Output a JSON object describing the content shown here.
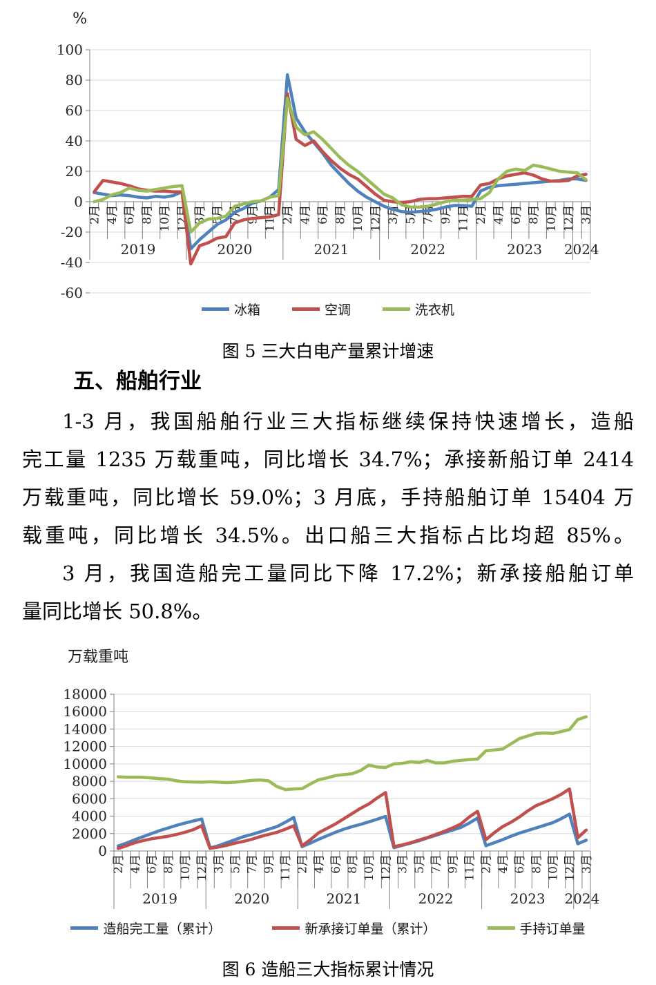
{
  "section": {
    "heading": "五、船舶行业",
    "para1": [
      "1-3 月，我国船舶行业三大指标继续保持快速增长，造船",
      "完工量 1235 万载重吨，同比增长 34.7%；承接新船订单 2414",
      "万载重吨，同比增长 59.0%；3 月底，手持船舶订单 15404 万",
      "载重吨，同比增长 34.5%。出口船三大指标占比均超 85%。"
    ],
    "para2": [
      "3 月，我国造船完工量同比下降 17.2%；新承接船舶订单",
      "量同比增长 50.8%。"
    ]
  },
  "chart_data": [
    {
      "type": "line",
      "title": "图 5 三大白电产量累计增速",
      "unit_label": "%",
      "ylim": [
        -60,
        100
      ],
      "y_ticks": [
        100,
        80,
        60,
        40,
        20,
        0,
        -20,
        -40,
        -60
      ],
      "grid": true,
      "legend_position": "bottom",
      "x_note": "cumulative year-to-date growth, points Feb-Dec of 2019-2023 plus Feb-Mar 2024 (57 points)",
      "x_tick_labels": [
        {
          "index": 0,
          "label": "2月"
        },
        {
          "index": 2,
          "label": "4月"
        },
        {
          "index": 4,
          "label": "6月"
        },
        {
          "index": 6,
          "label": "8月"
        },
        {
          "index": 8,
          "label": "10月"
        },
        {
          "index": 10,
          "label": "12月"
        },
        {
          "index": 12,
          "label": "3月"
        },
        {
          "index": 14,
          "label": "5月"
        },
        {
          "index": 16,
          "label": "7月"
        },
        {
          "index": 18,
          "label": "9月"
        },
        {
          "index": 20,
          "label": "11月"
        },
        {
          "index": 22,
          "label": "2月"
        },
        {
          "index": 24,
          "label": "4月"
        },
        {
          "index": 26,
          "label": "6月"
        },
        {
          "index": 28,
          "label": "8月"
        },
        {
          "index": 30,
          "label": "10月"
        },
        {
          "index": 32,
          "label": "12月"
        },
        {
          "index": 34,
          "label": "3月"
        },
        {
          "index": 36,
          "label": "5月"
        },
        {
          "index": 38,
          "label": "7月"
        },
        {
          "index": 40,
          "label": "9月"
        },
        {
          "index": 42,
          "label": "11月"
        },
        {
          "index": 44,
          "label": "2月"
        },
        {
          "index": 46,
          "label": "4月"
        },
        {
          "index": 48,
          "label": "6月"
        },
        {
          "index": 50,
          "label": "8月"
        },
        {
          "index": 52,
          "label": "10月"
        },
        {
          "index": 54,
          "label": "12月"
        },
        {
          "index": 56,
          "label": "3月"
        }
      ],
      "year_bands": [
        {
          "label": "2019",
          "start": 0,
          "end": 10
        },
        {
          "label": "2020",
          "start": 11,
          "end": 21
        },
        {
          "label": "2021",
          "start": 22,
          "end": 32
        },
        {
          "label": "2022",
          "start": 33,
          "end": 43
        },
        {
          "label": "2023",
          "start": 44,
          "end": 54
        },
        {
          "label": "2024",
          "start": 55,
          "end": 56
        }
      ],
      "series": [
        {
          "name": "冰箱",
          "color": "#4F81BD",
          "values": [
            6,
            5,
            4,
            4.5,
            4,
            3,
            2.5,
            3.5,
            3,
            4,
            6.5,
            -31,
            -25,
            -20,
            -15,
            -12,
            -7,
            -4.5,
            -1,
            0.5,
            3,
            8,
            83.5,
            55,
            46,
            39,
            32,
            24,
            18,
            12,
            7,
            3,
            0,
            -3,
            -5,
            -6.5,
            -7,
            -6.5,
            -6,
            -5,
            -3.5,
            -2.5,
            -2.5,
            -3,
            7,
            9.5,
            10.5,
            11,
            11.5,
            12,
            12.5,
            13,
            13.5,
            14,
            15,
            15,
            14
          ]
        },
        {
          "name": "空调",
          "color": "#C0504D",
          "values": [
            6.5,
            14,
            13,
            12,
            10.5,
            8.5,
            7.5,
            7,
            7,
            6.5,
            6.5,
            -41,
            -29,
            -27,
            -24,
            -23,
            -14,
            -12,
            -11,
            -10.5,
            -10,
            -8.5,
            71,
            41,
            37,
            40,
            33,
            27,
            22,
            18,
            15,
            10,
            5,
            1,
            0,
            -0.5,
            0,
            1.5,
            2,
            2,
            2.5,
            3,
            3.5,
            3.5,
            11,
            12,
            15,
            17,
            18,
            19,
            17.5,
            15,
            13.5,
            13.5,
            14,
            17,
            18
          ]
        },
        {
          "name": "洗衣机",
          "color": "#9BBB59",
          "values": [
            0,
            1.5,
            4.5,
            6,
            9,
            7.5,
            7,
            8,
            9,
            10,
            10.5,
            -20,
            -14,
            -11.5,
            -11,
            -9.5,
            -3,
            -1.5,
            0,
            0.5,
            3,
            4,
            68,
            49,
            44,
            46,
            41,
            35,
            29,
            24,
            20,
            15,
            10,
            5,
            2.5,
            -2,
            -3.5,
            -3.5,
            -3,
            -1.5,
            0,
            1,
            1,
            1.5,
            2,
            6,
            15,
            20,
            21.5,
            20.5,
            24,
            23,
            21.5,
            20,
            19.5,
            19,
            14.5
          ]
        }
      ]
    },
    {
      "type": "line",
      "title": "图 6 造船三大指标累计情况",
      "unit_label": "万载重吨",
      "ylim": [
        0,
        18000
      ],
      "y_ticks": [
        18000,
        16000,
        14000,
        12000,
        10000,
        8000,
        6000,
        4000,
        2000,
        0
      ],
      "grid": true,
      "legend_position": "bottom",
      "x_note": "cumulative totals, points Feb-Dec of 2019-2023 plus Feb-Mar 2024 (57 points)",
      "x_tick_labels": [
        {
          "index": 0,
          "label": "2月"
        },
        {
          "index": 2,
          "label": "4月"
        },
        {
          "index": 4,
          "label": "6月"
        },
        {
          "index": 6,
          "label": "8月"
        },
        {
          "index": 8,
          "label": "10月"
        },
        {
          "index": 10,
          "label": "12月"
        },
        {
          "index": 12,
          "label": "3月"
        },
        {
          "index": 14,
          "label": "5月"
        },
        {
          "index": 16,
          "label": "7月"
        },
        {
          "index": 18,
          "label": "9月"
        },
        {
          "index": 20,
          "label": "11月"
        },
        {
          "index": 22,
          "label": "2月"
        },
        {
          "index": 24,
          "label": "4月"
        },
        {
          "index": 26,
          "label": "6月"
        },
        {
          "index": 28,
          "label": "8月"
        },
        {
          "index": 30,
          "label": "10月"
        },
        {
          "index": 32,
          "label": "12月"
        },
        {
          "index": 34,
          "label": "3月"
        },
        {
          "index": 36,
          "label": "5月"
        },
        {
          "index": 38,
          "label": "7月"
        },
        {
          "index": 40,
          "label": "9月"
        },
        {
          "index": 42,
          "label": "11月"
        },
        {
          "index": 44,
          "label": "2月"
        },
        {
          "index": 46,
          "label": "4月"
        },
        {
          "index": 48,
          "label": "6月"
        },
        {
          "index": 50,
          "label": "8月"
        },
        {
          "index": 52,
          "label": "10月"
        },
        {
          "index": 54,
          "label": "12月"
        },
        {
          "index": 56,
          "label": "3月"
        }
      ],
      "year_bands": [
        {
          "label": "2019",
          "start": 0,
          "end": 10
        },
        {
          "label": "2020",
          "start": 11,
          "end": 21
        },
        {
          "label": "2021",
          "start": 22,
          "end": 32
        },
        {
          "label": "2022",
          "start": 33,
          "end": 43
        },
        {
          "label": "2023",
          "start": 44,
          "end": 54
        },
        {
          "label": "2024",
          "start": 55,
          "end": 56
        }
      ],
      "series": [
        {
          "name": "造船完工量（累计）",
          "color": "#4F81BD",
          "values": [
            580,
            900,
            1300,
            1650,
            2000,
            2350,
            2650,
            2950,
            3200,
            3450,
            3672,
            350,
            600,
            950,
            1300,
            1650,
            1900,
            2200,
            2500,
            2800,
            3300,
            3853,
            500,
            900,
            1350,
            1750,
            2150,
            2500,
            2800,
            3050,
            3350,
            3650,
            3970,
            380,
            650,
            900,
            1170,
            1500,
            1800,
            2100,
            2400,
            2700,
            3200,
            3786,
            600,
            950,
            1300,
            1700,
            2050,
            2350,
            2650,
            2950,
            3250,
            3700,
            4232,
            826,
            1235
          ]
        },
        {
          "name": "新承接订单量（累计）",
          "color": "#C0504D",
          "values": [
            290,
            600,
            950,
            1200,
            1400,
            1550,
            1700,
            1900,
            2150,
            2450,
            2907,
            300,
            450,
            650,
            900,
            1100,
            1350,
            1650,
            1900,
            2150,
            2500,
            2893,
            600,
            1300,
            2100,
            2600,
            3100,
            3700,
            4300,
            4900,
            5400,
            6100,
            6707,
            500,
            700,
            950,
            1250,
            1550,
            1900,
            2250,
            2650,
            3100,
            3900,
            4552,
            1300,
            2100,
            2800,
            3300,
            3900,
            4600,
            5200,
            5600,
            6000,
            6500,
            7120,
            1520,
            2414
          ]
        },
        {
          "name": "手持订单量",
          "color": "#9BBB59",
          "values": [
            8520,
            8470,
            8480,
            8450,
            8380,
            8300,
            8250,
            8050,
            7950,
            7920,
            7900,
            7950,
            7900,
            7850,
            7900,
            8000,
            8100,
            8150,
            8050,
            7400,
            7050,
            7111,
            7150,
            7700,
            8180,
            8390,
            8660,
            8770,
            8870,
            9240,
            9860,
            9640,
            9584,
            10000,
            10060,
            10250,
            10170,
            10390,
            10110,
            10110,
            10300,
            10400,
            10500,
            10557,
            11500,
            11600,
            11700,
            12300,
            12900,
            13200,
            13500,
            13550,
            13500,
            13700,
            13939,
            15100,
            15404
          ]
        }
      ]
    }
  ]
}
